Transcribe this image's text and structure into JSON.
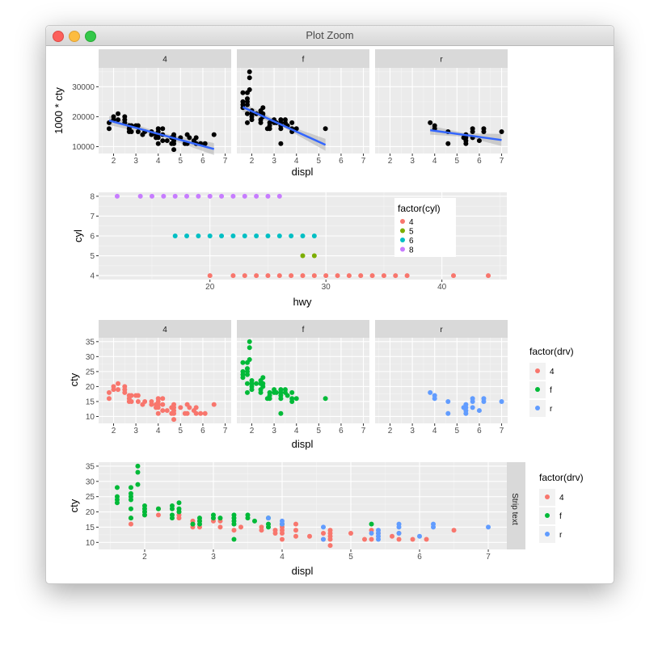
{
  "window": {
    "title": "Plot Zoom",
    "buttons": [
      "close",
      "minimize",
      "zoom"
    ]
  },
  "colors": {
    "drv": {
      "4": "#F8766D",
      "f": "#00BA38",
      "r": "#619CFF"
    },
    "cyl": {
      "4": "#F8766D",
      "5": "#7CAE00",
      "6": "#00BFC4",
      "8": "#C77CFF"
    },
    "smooth": "#3366FF",
    "point": "#000000"
  },
  "chart_data": [
    {
      "type": "scatter",
      "facet": "drv",
      "strips": [
        "4",
        "f",
        "r"
      ],
      "xlabel": "displ",
      "ylabel": "1000 * cty",
      "xlim": [
        1.33,
        7.27
      ],
      "ylim": [
        7700,
        36300
      ],
      "xticks": [
        "2",
        "3",
        "4",
        "5",
        "6",
        "7"
      ],
      "yticks": [
        "10000",
        "20000",
        "30000"
      ],
      "smooth": {
        "method": "lm",
        "lines": {
          "4": [
            [
              1.8,
              18700
            ],
            [
              6.5,
              9200
            ]
          ],
          "f": [
            [
              1.6,
              23200
            ],
            [
              5.3,
              10600
            ]
          ],
          "r": [
            [
              3.8,
              15500
            ],
            [
              7,
              12200
            ]
          ]
        }
      },
      "scale": 1000
    },
    {
      "type": "scatter",
      "xlabel": "hwy",
      "ylabel": "cyl",
      "xlim": [
        10.4,
        45.6
      ],
      "ylim": [
        3.8,
        8.2
      ],
      "xticks": [
        "20",
        "30",
        "40"
      ],
      "yticks": [
        "4",
        "5",
        "6",
        "7",
        "8"
      ],
      "legend": {
        "title": "factor(cyl)",
        "entries": [
          "4",
          "5",
          "6",
          "8"
        ],
        "placement": "inside-top-right"
      },
      "series": {
        "4": [
          20,
          22,
          23,
          24,
          25,
          26,
          27,
          28,
          29,
          30,
          31,
          32,
          33,
          34,
          35,
          36,
          37,
          41,
          44
        ],
        "5": [
          28,
          29
        ],
        "6": [
          17,
          18,
          19,
          20,
          21,
          22,
          23,
          24,
          25,
          26,
          27,
          28,
          29
        ],
        "8": [
          12,
          14,
          15,
          16,
          17,
          18,
          19,
          20,
          21,
          22,
          23,
          24,
          25,
          26
        ]
      }
    },
    {
      "type": "scatter",
      "facet": "drv",
      "strips": [
        "4",
        "f",
        "r"
      ],
      "xlabel": "displ",
      "ylabel": "cty",
      "xlim": [
        1.33,
        7.27
      ],
      "ylim": [
        7.7,
        36.3
      ],
      "xticks": [
        "2",
        "3",
        "4",
        "5",
        "6",
        "7"
      ],
      "yticks": [
        "10",
        "15",
        "20",
        "25",
        "30",
        "35"
      ],
      "legend": {
        "title": "factor(drv)",
        "entries": [
          "4",
          "f",
          "r"
        ],
        "placement": "right"
      }
    },
    {
      "type": "scatter",
      "xlabel": "displ",
      "ylabel": "cty",
      "xlim": [
        1.33,
        7.27
      ],
      "ylim": [
        7.7,
        36.3
      ],
      "xticks": [
        "2",
        "3",
        "4",
        "5",
        "6",
        "7"
      ],
      "yticks": [
        "10",
        "15",
        "20",
        "25",
        "30",
        "35"
      ],
      "strip": "Strip text",
      "legend": {
        "title": "factor(drv)",
        "entries": [
          "4",
          "f",
          "r"
        ],
        "placement": "right"
      }
    }
  ],
  "mpg": {
    "4": [
      [
        1.8,
        18
      ],
      [
        1.8,
        16
      ],
      [
        2,
        20
      ],
      [
        2,
        19
      ],
      [
        2.2,
        21
      ],
      [
        2.2,
        19
      ],
      [
        2.5,
        20
      ],
      [
        2.5,
        18
      ],
      [
        2.5,
        19
      ],
      [
        2.7,
        17
      ],
      [
        2.7,
        16
      ],
      [
        2.7,
        15
      ],
      [
        2.8,
        17
      ],
      [
        2.8,
        15
      ],
      [
        3,
        17
      ],
      [
        3.1,
        17
      ],
      [
        3.1,
        15
      ],
      [
        3.3,
        14
      ],
      [
        3.4,
        15
      ],
      [
        3.7,
        15
      ],
      [
        3.7,
        14
      ],
      [
        3.9,
        14
      ],
      [
        3.9,
        13
      ],
      [
        4,
        16
      ],
      [
        4,
        15
      ],
      [
        4,
        14
      ],
      [
        4,
        13
      ],
      [
        4,
        11
      ],
      [
        4.2,
        16
      ],
      [
        4.2,
        14
      ],
      [
        4.2,
        12
      ],
      [
        4.4,
        12
      ],
      [
        4.6,
        13
      ],
      [
        4.6,
        11
      ],
      [
        4.7,
        14
      ],
      [
        4.7,
        13
      ],
      [
        4.7,
        12
      ],
      [
        4.7,
        11
      ],
      [
        4.7,
        9
      ],
      [
        5,
        13
      ],
      [
        5.2,
        11
      ],
      [
        5.3,
        14
      ],
      [
        5.3,
        11
      ],
      [
        5.4,
        13
      ],
      [
        5.6,
        12
      ],
      [
        5.7,
        13
      ],
      [
        5.7,
        11
      ],
      [
        5.9,
        11
      ],
      [
        6.1,
        11
      ],
      [
        6.5,
        14
      ]
    ],
    "f": [
      [
        1.6,
        28
      ],
      [
        1.6,
        25
      ],
      [
        1.6,
        24
      ],
      [
        1.6,
        23
      ],
      [
        1.8,
        28
      ],
      [
        1.8,
        26
      ],
      [
        1.8,
        25
      ],
      [
        1.8,
        24
      ],
      [
        1.8,
        21
      ],
      [
        1.8,
        18
      ],
      [
        1.9,
        35
      ],
      [
        1.9,
        33
      ],
      [
        1.9,
        29
      ],
      [
        2,
        22
      ],
      [
        2,
        21
      ],
      [
        2,
        20
      ],
      [
        2,
        19
      ],
      [
        2.2,
        21
      ],
      [
        2.4,
        22
      ],
      [
        2.4,
        21
      ],
      [
        2.4,
        19
      ],
      [
        2.4,
        18
      ],
      [
        2.5,
        23
      ],
      [
        2.5,
        21
      ],
      [
        2.5,
        20
      ],
      [
        2.7,
        16
      ],
      [
        2.8,
        18
      ],
      [
        2.8,
        17
      ],
      [
        2.8,
        16
      ],
      [
        3,
        19
      ],
      [
        3,
        18
      ],
      [
        3.1,
        18
      ],
      [
        3.3,
        19
      ],
      [
        3.3,
        18
      ],
      [
        3.3,
        17
      ],
      [
        3.3,
        16
      ],
      [
        3.3,
        11
      ],
      [
        3.5,
        19
      ],
      [
        3.5,
        18
      ],
      [
        3.6,
        17
      ],
      [
        3.8,
        18
      ],
      [
        3.8,
        16
      ],
      [
        3.8,
        15
      ],
      [
        4,
        16
      ],
      [
        5.3,
        16
      ]
    ],
    "r": [
      [
        3.8,
        18
      ],
      [
        4,
        17
      ],
      [
        4,
        16
      ],
      [
        4.6,
        15
      ],
      [
        4.6,
        11
      ],
      [
        5.3,
        13
      ],
      [
        5.4,
        14
      ],
      [
        5.4,
        13
      ],
      [
        5.4,
        12
      ],
      [
        5.4,
        11
      ],
      [
        5.7,
        16
      ],
      [
        5.7,
        15
      ],
      [
        5.7,
        13
      ],
      [
        6,
        12
      ],
      [
        6.2,
        16
      ],
      [
        6.2,
        15
      ],
      [
        7,
        15
      ]
    ]
  }
}
